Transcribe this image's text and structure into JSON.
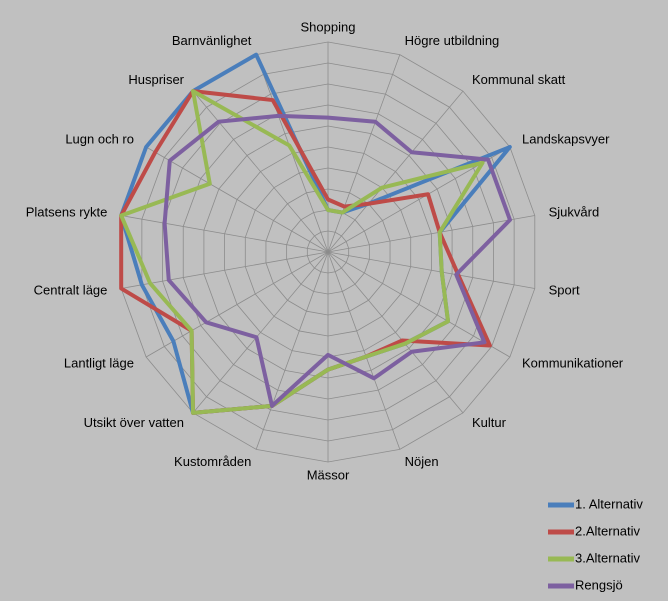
{
  "chart_data": {
    "type": "radar",
    "categories": [
      "Shopping",
      "Högre utbildning",
      "Kommunal skatt",
      "Landskapsvyer",
      "Sjukvård",
      "Sport",
      "Kommunikationer",
      "Kultur",
      "Nöjen",
      "Mässor",
      "Kustområden",
      "Utsikt över vatten",
      "Lantligt läge",
      "Centralt läge",
      "Platsens rykte",
      "Lugn och ro",
      "Huspriser",
      "Barnvänlighet"
    ],
    "series": [
      {
        "name": "1. Alternativ",
        "color": "#4a7ebb",
        "values": [
          2,
          2,
          3,
          10,
          5.4,
          5.5,
          6.6,
          5.7,
          5.3,
          5.6,
          7.8,
          10,
          8.5,
          9,
          10,
          10,
          10,
          10
        ]
      },
      {
        "name": "2.Alternativ",
        "color": "#be4b48",
        "values": [
          2.5,
          2.3,
          3,
          5.5,
          5.4,
          6.3,
          8.9,
          5.5,
          5.3,
          5.6,
          7.8,
          10,
          7.5,
          10,
          10,
          9.5,
          10,
          7.7
        ]
      },
      {
        "name": "3.Alternativ",
        "color": "#98b954",
        "values": [
          2,
          2,
          4,
          8.5,
          5.4,
          5.5,
          6.6,
          5.7,
          5.3,
          5.6,
          7.8,
          10,
          7.5,
          8.6,
          10,
          6.5,
          10,
          5.4
        ]
      },
      {
        "name": "Rengsjö",
        "color": "#7d60a0",
        "values": [
          6.4,
          6.6,
          6.2,
          8.8,
          8.8,
          6.2,
          8.6,
          6.2,
          6.4,
          4.9,
          7.8,
          5.3,
          6.7,
          7.7,
          7.9,
          8.7,
          8.1,
          6.9
        ]
      }
    ],
    "rlim": [
      0,
      10
    ],
    "rticks": [
      0,
      1,
      2,
      3,
      4,
      5,
      6,
      7,
      8,
      9,
      10
    ],
    "grid": true,
    "legend": "bottom-right"
  }
}
